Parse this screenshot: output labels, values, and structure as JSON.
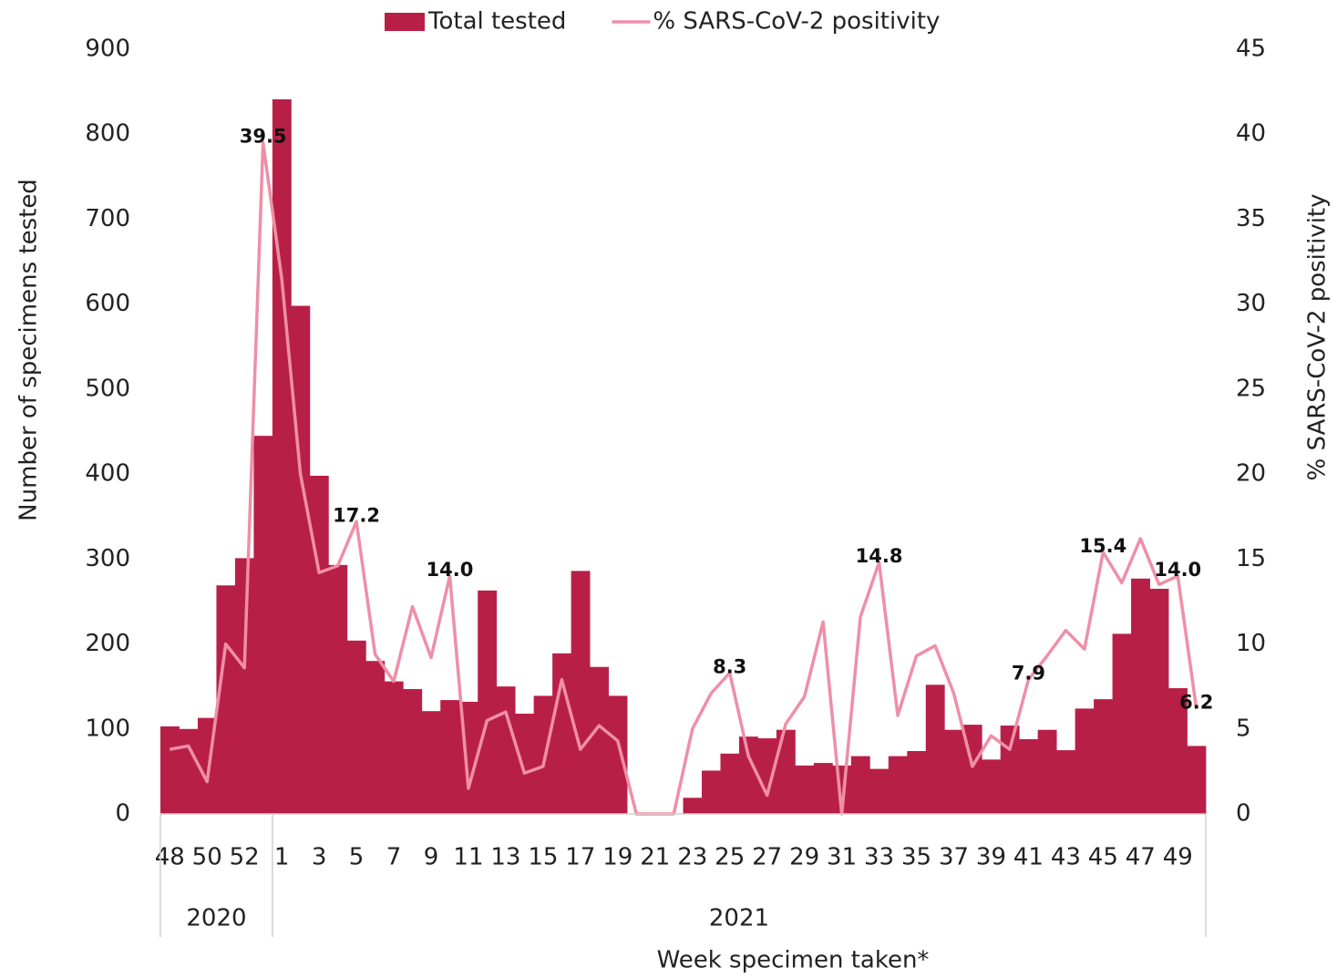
{
  "chart_data": {
    "type": "bar-line",
    "x_title": "Week specimen taken*",
    "y_title": "Number of specimens tested",
    "y2_title": "% SARS-CoV-2 positivity",
    "categories": [
      "48",
      null,
      "50",
      null,
      "52",
      null,
      "1",
      null,
      "3",
      null,
      "5",
      null,
      "7",
      null,
      "9",
      null,
      "11",
      null,
      "13",
      null,
      "15",
      null,
      "17",
      null,
      "19",
      null,
      "21",
      null,
      "23",
      null,
      "25",
      null,
      "27",
      null,
      "29",
      null,
      "31",
      null,
      "33",
      null,
      "35",
      null,
      "37",
      null,
      "39",
      null,
      "41",
      null,
      "43",
      null,
      "45",
      null,
      "47",
      null,
      "49",
      null
    ],
    "groups": [
      "2020",
      "2021"
    ],
    "series": [
      {
        "name": "Total tested",
        "kind": "bar",
        "color": "#b81f47",
        "values": [
          103,
          100,
          113,
          269,
          301,
          445,
          841,
          598,
          398,
          293,
          204,
          180,
          156,
          147,
          121,
          134,
          132,
          263,
          150,
          118,
          139,
          189,
          286,
          173,
          139,
          0,
          0,
          0,
          19,
          51,
          71,
          91,
          89,
          99,
          57,
          60,
          57,
          68,
          53,
          68,
          74,
          152,
          99,
          105,
          64,
          104,
          88,
          99,
          75,
          124,
          135,
          212,
          277,
          265,
          148,
          80
        ]
      },
      {
        "name": "% SARS-CoV-2 positivity",
        "kind": "line",
        "axis": "y2",
        "color": "#ee8fa7",
        "values": [
          3.8,
          4.0,
          1.9,
          10.0,
          8.6,
          39.5,
          31.5,
          20.0,
          14.2,
          14.6,
          17.2,
          9.4,
          7.8,
          12.2,
          9.2,
          14.0,
          1.5,
          5.5,
          6.0,
          2.4,
          2.8,
          7.9,
          3.8,
          5.2,
          4.3,
          0,
          0,
          0,
          5.0,
          7.1,
          8.3,
          3.4,
          1.1,
          5.3,
          6.9,
          11.3,
          0,
          11.6,
          14.8,
          5.8,
          9.3,
          9.9,
          7.1,
          2.8,
          4.6,
          3.8,
          7.9,
          9.3,
          10.8,
          9.7,
          15.4,
          13.6,
          16.2,
          13.5,
          14.0,
          6.2
        ],
        "value_labels": [
          null,
          null,
          null,
          null,
          null,
          "39.5",
          null,
          null,
          null,
          null,
          "17.2",
          null,
          null,
          null,
          null,
          "14.0",
          null,
          null,
          null,
          null,
          null,
          null,
          null,
          null,
          null,
          null,
          null,
          null,
          null,
          null,
          "8.3",
          null,
          null,
          null,
          null,
          null,
          null,
          null,
          "14.8",
          null,
          null,
          null,
          null,
          null,
          null,
          null,
          "7.9",
          null,
          null,
          null,
          "15.4",
          null,
          null,
          null,
          "14.0",
          "6.2"
        ]
      }
    ],
    "ylim": [
      0,
      900
    ],
    "yticks": [
      0,
      100,
      200,
      300,
      400,
      500,
      600,
      700,
      800,
      900
    ],
    "y2lim": [
      0,
      45
    ],
    "y2ticks": [
      0,
      5,
      10,
      15,
      20,
      25,
      30,
      35,
      40,
      45
    ],
    "legend": "top",
    "grid": false
  }
}
